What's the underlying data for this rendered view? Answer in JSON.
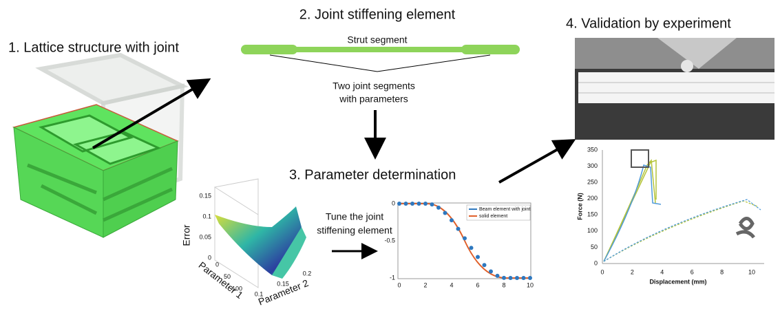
{
  "panels": [
    {
      "title": "1. Lattice structure with joint"
    },
    {
      "title": "2. Joint stiffening element",
      "strut_label": "Strut segment",
      "joint_label": [
        "Two joint segments",
        "with parameters"
      ]
    },
    {
      "title": "3. Parameter determination",
      "tune_label": [
        "Tune the joint",
        "stiffening element"
      ]
    },
    {
      "title": "4. Validation by experiment"
    }
  ],
  "surface_plot": {
    "zlabel": "Error",
    "xlabel": "Parameter 1",
    "ylabel": "Parameter 2",
    "zticks": [
      "0.15",
      "0.1",
      "0.05",
      "0"
    ],
    "xticks": [
      "100",
      "50",
      "0"
    ],
    "yticks": [
      "0.1",
      "0.15",
      "0.2"
    ]
  },
  "beam_plot": {
    "yticks": [
      "0",
      "-0.5",
      "-1"
    ],
    "xticks": [
      "0",
      "2",
      "4",
      "6",
      "8",
      "10"
    ],
    "legend": [
      "Beam element with joint",
      "solid element"
    ]
  },
  "force_plot": {
    "ylabel": "Force (N)",
    "xlabel": "Displacement (mm)",
    "yticks": [
      "0",
      "50",
      "100",
      "150",
      "200",
      "250",
      "300",
      "350"
    ],
    "xticks": [
      "0",
      "2",
      "4",
      "6",
      "8",
      "10"
    ]
  }
}
